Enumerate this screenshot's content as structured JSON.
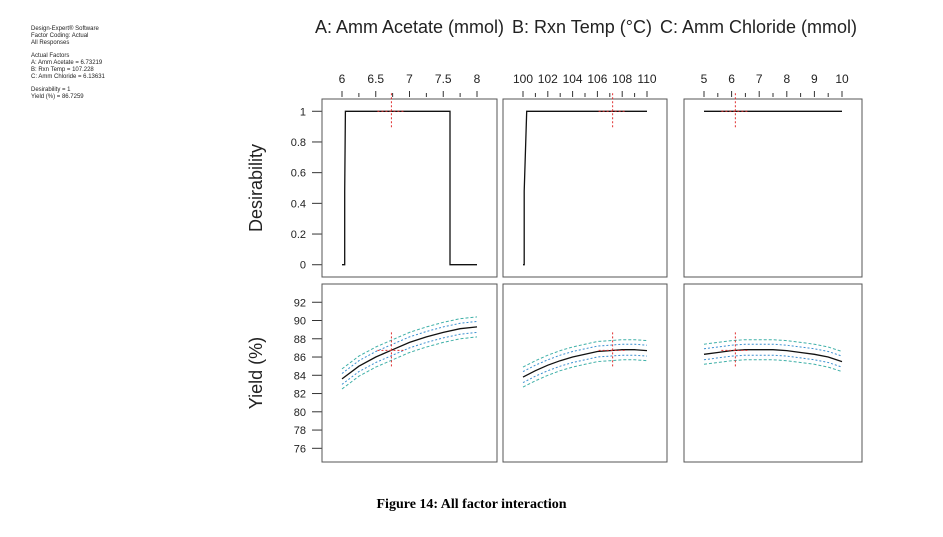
{
  "info": {
    "software": "Design-Expert® Software",
    "coding": "Factor Coding: Actual",
    "responses": "All Responses",
    "actual_factors_title": "Actual Factors",
    "factors": [
      "A: Amm Acetate = 6.73219",
      "B: Rxn Temp = 107.228",
      "C: Amm Chloride = 6.13631"
    ],
    "desirability": "Desirability = 1",
    "yield": "Yield (%) = 86.7259"
  },
  "caption": "Figure 14: All factor interaction",
  "colors": {
    "curve": "#111111",
    "band_outer": "#3fb0a8",
    "band_inner": "#3b8fd1",
    "marker": "#e03030",
    "frame": "#555555"
  },
  "chart_data": {
    "type": "line",
    "factors": [
      {
        "name": "A: Amm Acetate (mmol)",
        "ticks": [
          6,
          6.5,
          7,
          7.5,
          8
        ],
        "tick_labels": [
          "6",
          "6.5",
          "7",
          "7.5",
          "8"
        ],
        "range": [
          6,
          8
        ],
        "current": 6.73219
      },
      {
        "name": "B: Rxn Temp (°C)",
        "ticks": [
          100,
          102,
          104,
          106,
          108,
          110
        ],
        "tick_labels": [
          "100",
          "102",
          "104",
          "106",
          "108",
          "110"
        ],
        "range": [
          100,
          110
        ],
        "current": 107.228
      },
      {
        "name": "C: Amm Chloride (mmol)",
        "ticks": [
          5,
          6,
          7,
          8,
          9,
          10
        ],
        "tick_labels": [
          "5",
          "6",
          "7",
          "8",
          "9",
          "10"
        ],
        "range": [
          5,
          10
        ],
        "current": 6.13631
      }
    ],
    "responses": [
      {
        "name": "Desirability",
        "ylim": [
          -0.08,
          1.08
        ],
        "ticks": [
          0,
          0.2,
          0.4,
          0.6,
          0.8,
          1
        ],
        "tick_labels": [
          "0",
          "0.2",
          "0.4",
          "0.6",
          "0.8",
          "1"
        ],
        "series": [
          {
            "x": [
              6.0,
              6.04,
              6.04,
              6.05,
              7.6,
              7.6,
              7.6,
              8.0
            ],
            "y": [
              0,
              0,
              0.48,
              1,
              1,
              0.48,
              0,
              0
            ]
          },
          {
            "x": [
              100.0,
              100.1,
              100.1,
              100.3,
              110.0
            ],
            "y": [
              0,
              0,
              0.48,
              1,
              1
            ]
          },
          {
            "x": [
              5.0,
              10.0
            ],
            "y": [
              1,
              1
            ]
          }
        ],
        "current": 1
      },
      {
        "name": "Yield (%)",
        "ylim": [
          74.5,
          94
        ],
        "ticks": [
          76,
          78,
          80,
          82,
          84,
          86,
          88,
          90,
          92
        ],
        "tick_labels": [
          "76",
          "78",
          "80",
          "82",
          "84",
          "86",
          "88",
          "90",
          "92"
        ],
        "series": [
          {
            "x": [
              6.0,
              6.25,
              6.5,
              6.75,
              7.0,
              7.25,
              7.5,
              7.75,
              8.0
            ],
            "y": [
              83.6,
              85.0,
              86.0,
              86.8,
              87.6,
              88.2,
              88.7,
              89.1,
              89.3
            ]
          },
          {
            "x": [
              100,
              101,
              102,
              103,
              104,
              105,
              106,
              107,
              108,
              109,
              110
            ],
            "y": [
              83.8,
              84.5,
              85.1,
              85.6,
              86.0,
              86.3,
              86.6,
              86.7,
              86.8,
              86.8,
              86.7
            ]
          },
          {
            "x": [
              5.0,
              5.5,
              6.0,
              6.5,
              7.0,
              7.5,
              8.0,
              8.5,
              9.0,
              9.5,
              10.0
            ],
            "y": [
              86.3,
              86.5,
              86.7,
              86.8,
              86.8,
              86.8,
              86.7,
              86.5,
              86.3,
              86.0,
              85.5
            ]
          }
        ],
        "band_inner": 0.6,
        "band_outer": 1.1,
        "current": 86.7259
      }
    ]
  }
}
